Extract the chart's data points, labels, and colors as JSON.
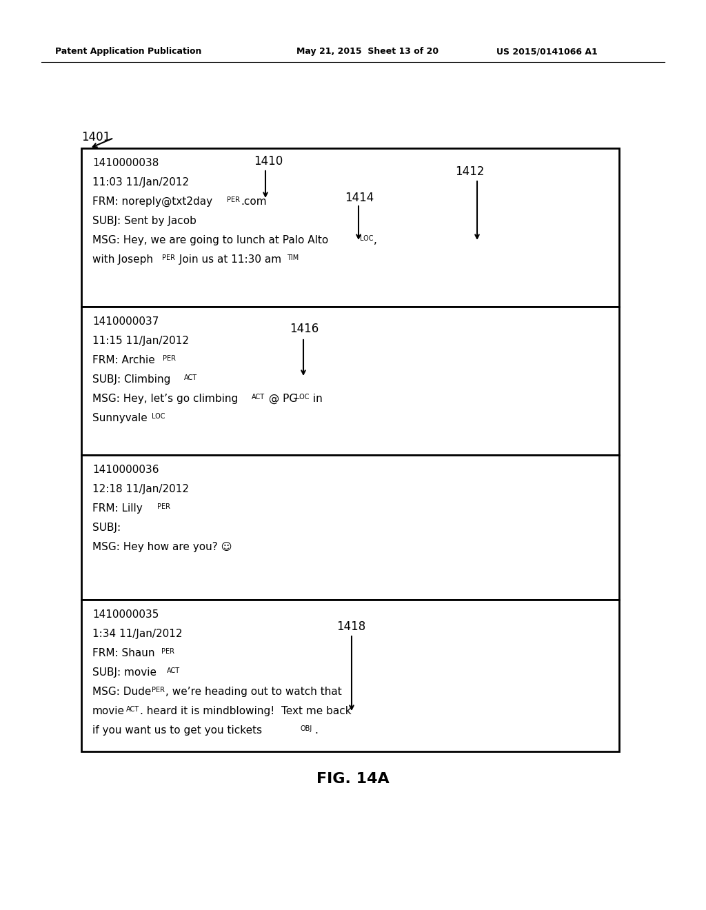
{
  "header_left": "Patent Application Publication",
  "header_middle": "May 21, 2015  Sheet 13 of 20",
  "header_right": "US 2015/0141066 A1",
  "figure_label": "FIG. 14A",
  "label_1401": "1401",
  "label_1410": "1410",
  "label_1412": "1412",
  "label_1414": "1414",
  "label_1416": "1416",
  "label_1418": "1418",
  "msg1": {
    "line1": "1410000038",
    "line2": "11:03 11/Jan/2012",
    "line3_pre": "FRM: noreply@txt2day",
    "line3_sup1": "PER",
    "line3_post": ".com",
    "line4": "SUBJ: Sent by Jacob",
    "line5_pre": "MSG: Hey, we are going to lunch at ",
    "line5_mid": "Palo Alto",
    "line5_sup1": "LOC",
    "line5_post": ",",
    "line6_pre": "with Joseph",
    "line6_sup1": "PER",
    "line6_post": " Join us at 11:30 am ",
    "line6_sup2": "TIM"
  },
  "msg2": {
    "line1": "1410000037",
    "line2": "11:15 11/Jan/2012",
    "line3_pre": "FRM: Archie",
    "line3_sup": "PER",
    "line4_pre": "SUBJ: Climbing",
    "line4_sup": "ACT",
    "line5_pre": "MSG: Hey, let’s go climbing",
    "line5_sup1": "ACT",
    "line5_mid": " @ PG",
    "line5_sup2": "LOC",
    "line5_post": " in",
    "line6_pre": "Sunnyvale",
    "line6_sup": "LOC"
  },
  "msg3": {
    "line1": "1410000036",
    "line2": "12:18 11/Jan/2012",
    "line3_pre": "FRM: Lilly",
    "line3_sup": "PER",
    "line4": "SUBJ:",
    "line5": "MSG: Hey how are you? ☺"
  },
  "msg4": {
    "line1": "1410000035",
    "line2": "1:34 11/Jan/2012",
    "line3_pre": "FRM: Shaun",
    "line3_sup": "PER",
    "line4_pre": "SUBJ: movie",
    "line4_sup": "ACT",
    "line5_pre": "MSG: Dude",
    "line5_sup1": "PER",
    "line5_post": ", we’re heading out to watch that",
    "line6_pre": "movie",
    "line6_sup1": "ACT",
    "line6_post": ". heard it is mindblowing!  Text me back",
    "line7": "if you want us to get you tickets",
    "line7_sup": "OBJ",
    "line7_post": "."
  },
  "bg_color": "#ffffff",
  "text_color": "#000000",
  "box_color": "#000000",
  "font_size_main": 11,
  "font_size_header": 9,
  "font_size_sup": 7,
  "font_size_label": 12
}
